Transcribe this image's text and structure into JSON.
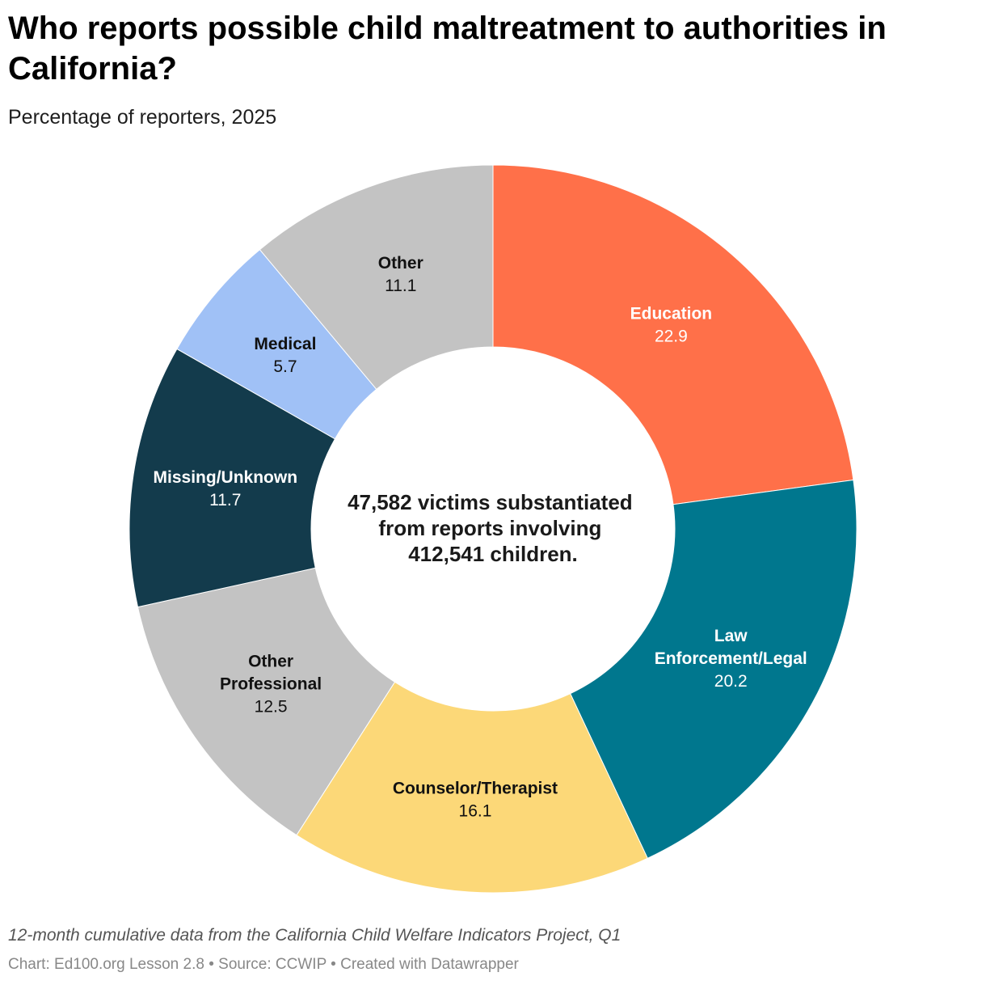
{
  "title": "Who reports possible child maltreatment to authorities in California?",
  "subtitle": "Percentage of reporters, 2025",
  "center_text": [
    "47,582 victims substantiated",
    "from reports involving",
    "412,541 children."
  ],
  "notes": "12-month cumulative data from the California Child Welfare Indicators Project, Q1",
  "credit": {
    "chart": "Chart: Ed100.org Lesson 2.8",
    "source": "Source: CCWIP",
    "created": "Created with Datawrapper",
    "separator": " • "
  },
  "chart_data": {
    "type": "pie",
    "subtype": "donut",
    "title": "Who reports possible child maltreatment to authorities in California?",
    "subtitle": "Percentage of reporters, 2025",
    "unit": "percent",
    "slices": [
      {
        "label": [
          "Education"
        ],
        "value": 22.9,
        "display": "22.9",
        "color": "#ff7049",
        "text_color": "#ffffff"
      },
      {
        "label": [
          "Law",
          "Enforcement/Legal"
        ],
        "value": 20.2,
        "display": "20.2",
        "color": "#00778e",
        "text_color": "#ffffff"
      },
      {
        "label": [
          "Counselor/Therapist"
        ],
        "value": 16.1,
        "display": "16.1",
        "color": "#fcd878",
        "text_color": "#111111"
      },
      {
        "label": [
          "Other",
          "Professional"
        ],
        "value": 12.5,
        "display": "12.5",
        "color": "#c3c3c3",
        "text_color": "#111111"
      },
      {
        "label": [
          "Missing/Unknown"
        ],
        "value": 11.7,
        "display": "11.7",
        "color": "#133b4c",
        "text_color": "#ffffff"
      },
      {
        "label": [
          "Medical"
        ],
        "value": 5.7,
        "display": "5.7",
        "color": "#a0c1f6",
        "text_color": "#111111"
      },
      {
        "label": [
          "Other"
        ],
        "value": 11.1,
        "display": "11.1",
        "color": "#c3c3c3",
        "text_color": "#111111"
      }
    ]
  }
}
